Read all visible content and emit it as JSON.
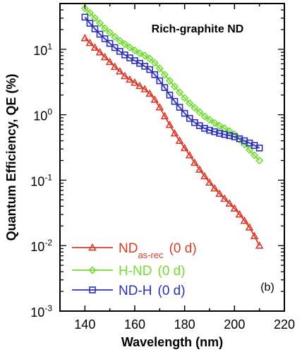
{
  "chart_data": {
    "type": "line",
    "title": "Rich-graphite ND",
    "panel_label": "(b)",
    "xlabel": "Wavelength (nm)",
    "ylabel": "Quantum Efficiency, QE (%)",
    "xlim": [
      130,
      220
    ],
    "ylim": [
      0.001,
      50
    ],
    "yscale": "log",
    "x_ticks": [
      140,
      160,
      180,
      200,
      220
    ],
    "y_ticks": [
      {
        "value": 0.001,
        "base": "10",
        "exp": "-3"
      },
      {
        "value": 0.01,
        "base": "10",
        "exp": "-2"
      },
      {
        "value": 0.1,
        "base": "10",
        "exp": "-1"
      },
      {
        "value": 1,
        "base": "10",
        "exp": "0"
      },
      {
        "value": 10,
        "base": "10",
        "exp": "1"
      }
    ],
    "grid": false,
    "legend_position": "bottom-left",
    "series": [
      {
        "name": "ND",
        "name_sub": "as-rec",
        "name_suffix": "(0 d)",
        "color": "#d93a2b",
        "marker": "triangle",
        "x": [
          140,
          142,
          144,
          146,
          148,
          150,
          152,
          154,
          156,
          158,
          160,
          162,
          164,
          166,
          168,
          170,
          172,
          174,
          176,
          178,
          180,
          182,
          184,
          186,
          188,
          190,
          192,
          194,
          196,
          198,
          200,
          202,
          204,
          206,
          208,
          210
        ],
        "y": [
          14.8,
          12.5,
          10.6,
          9.0,
          7.6,
          6.4,
          5.4,
          4.6,
          3.9,
          3.45,
          3.1,
          2.75,
          2.45,
          2.1,
          1.7,
          1.3,
          0.95,
          0.7,
          0.52,
          0.4,
          0.31,
          0.24,
          0.185,
          0.145,
          0.115,
          0.092,
          0.075,
          0.062,
          0.052,
          0.044,
          0.037,
          0.03,
          0.024,
          0.019,
          0.014,
          0.01
        ]
      },
      {
        "name": "H-ND",
        "name_suffix": "(0 d)",
        "color": "#6fdc2f",
        "marker": "diamond",
        "x": [
          140,
          142,
          144,
          146,
          148,
          150,
          152,
          154,
          156,
          158,
          160,
          162,
          164,
          166,
          168,
          170,
          172,
          174,
          176,
          178,
          180,
          182,
          184,
          186,
          188,
          190,
          192,
          194,
          196,
          198,
          200,
          202,
          204,
          206,
          208,
          210
        ],
        "y": [
          42,
          36,
          30,
          25,
          21,
          18,
          15.5,
          13.5,
          12,
          10.7,
          9.6,
          8.7,
          8.0,
          7.2,
          6.2,
          5.1,
          4.1,
          3.3,
          2.7,
          2.2,
          1.8,
          1.5,
          1.28,
          1.1,
          0.95,
          0.84,
          0.75,
          0.68,
          0.62,
          0.56,
          0.5,
          0.42,
          0.35,
          0.29,
          0.24,
          0.2
        ]
      },
      {
        "name": "ND-H",
        "name_suffix": "(0 d)",
        "color": "#2c2fb8",
        "marker": "square",
        "x": [
          140,
          142,
          144,
          146,
          148,
          150,
          152,
          154,
          156,
          158,
          160,
          162,
          164,
          166,
          168,
          170,
          172,
          174,
          176,
          178,
          180,
          182,
          184,
          186,
          188,
          190,
          192,
          194,
          196,
          198,
          200,
          202,
          204,
          206,
          208,
          210
        ],
        "y": [
          31,
          25,
          20.5,
          17,
          14.5,
          12.3,
          10.6,
          9.3,
          8.2,
          7.4,
          6.7,
          6.1,
          5.5,
          4.9,
          4.1,
          3.3,
          2.6,
          2.0,
          1.6,
          1.3,
          1.05,
          0.88,
          0.76,
          0.68,
          0.62,
          0.58,
          0.55,
          0.52,
          0.5,
          0.48,
          0.46,
          0.43,
          0.4,
          0.37,
          0.34,
          0.31
        ]
      }
    ]
  }
}
